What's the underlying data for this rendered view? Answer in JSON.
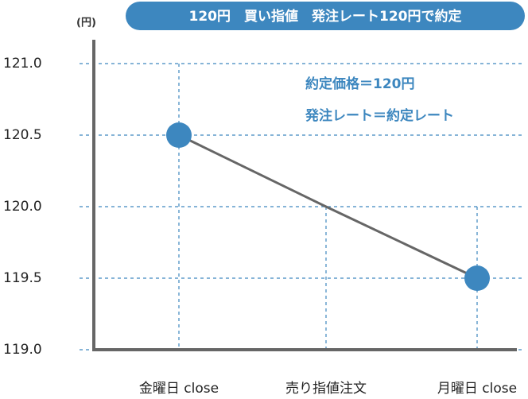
{
  "chart_data": {
    "type": "line",
    "title": "120円　買い指値　発注レート120円で約定",
    "y_unit": "(円)",
    "annotations": [
      "約定価格＝120円",
      "発注レート＝約定レート"
    ],
    "categories": [
      "金曜日 close",
      "売り指値注文",
      "月曜日 close"
    ],
    "series": [
      {
        "color": "#666666",
        "values": [
          120.5,
          120.0,
          119.5
        ]
      }
    ],
    "marker_color": "#3d87bf",
    "ylim": [
      119,
      121
    ],
    "yticks": [
      {
        "value": 119,
        "label": "119.0"
      },
      119.5,
      {
        "value": 120,
        "label": "120.0"
      },
      120.5,
      {
        "value": 121,
        "label": "121.0"
      }
    ],
    "grid": true
  }
}
